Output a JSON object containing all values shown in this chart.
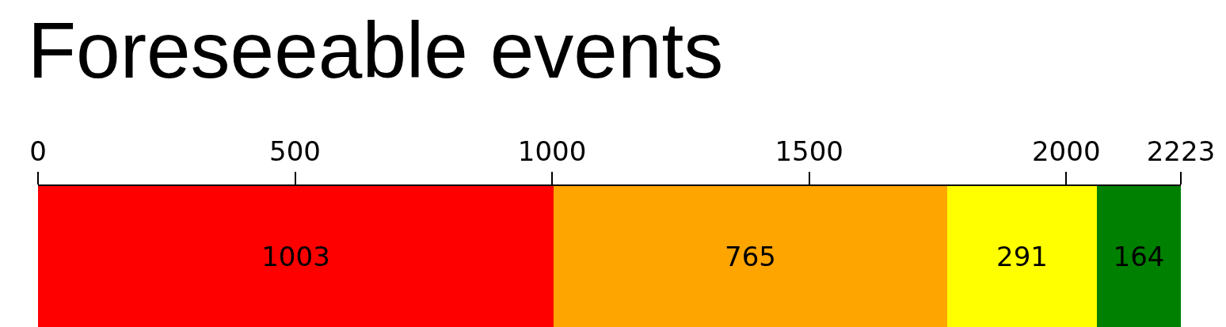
{
  "chart_data": {
    "type": "bar",
    "title": "Foreseeable events",
    "orientation": "horizontal",
    "stacked": true,
    "categories": [
      null
    ],
    "series": [
      {
        "color": "#ff0000",
        "values": [
          1003
        ]
      },
      {
        "color": "#ffa500",
        "values": [
          765
        ]
      },
      {
        "color": "#ffff00",
        "values": [
          291
        ]
      },
      {
        "color": "#008000",
        "values": [
          164
        ]
      }
    ],
    "xlim": [
      0,
      2223
    ],
    "xticks": [
      0,
      500,
      1000,
      1500,
      2000,
      2223
    ],
    "data_labels": true,
    "tick_labels": "x"
  }
}
